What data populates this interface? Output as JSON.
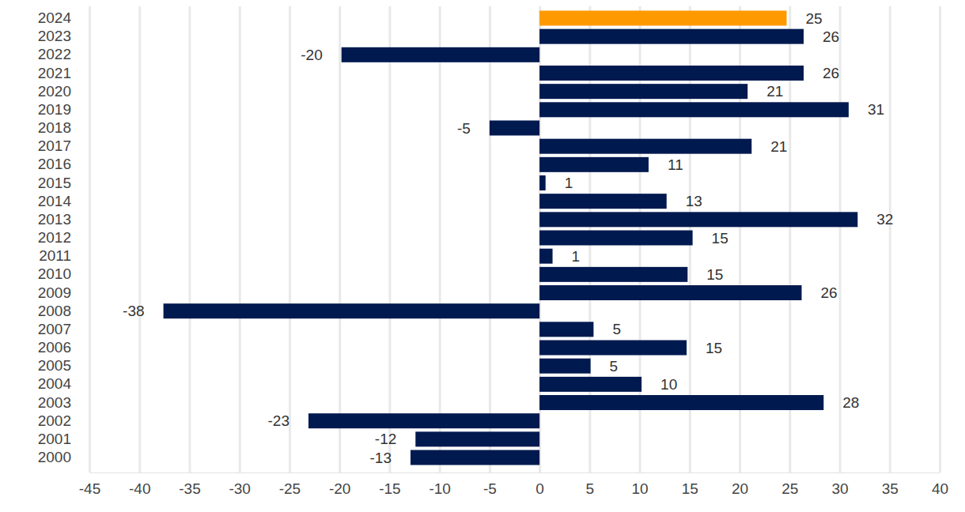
{
  "chart_data": {
    "type": "bar",
    "orientation": "horizontal",
    "categories": [
      "2024",
      "2023",
      "2022",
      "2021",
      "2020",
      "2019",
      "2018",
      "2017",
      "2016",
      "2015",
      "2014",
      "2013",
      "2012",
      "2011",
      "2010",
      "2009",
      "2008",
      "2007",
      "2006",
      "2005",
      "2004",
      "2003",
      "2002",
      "2001",
      "2000"
    ],
    "values": [
      24.7,
      26.4,
      -19.8,
      26.4,
      20.8,
      30.9,
      -5.0,
      21.2,
      10.9,
      0.6,
      12.7,
      31.8,
      15.3,
      1.3,
      14.8,
      26.2,
      -37.6,
      5.4,
      14.7,
      5.1,
      10.2,
      28.4,
      -23.1,
      -12.4,
      -12.9
    ],
    "value_labels": [
      "25",
      "26",
      "-20",
      "26",
      "21",
      "31",
      "-5",
      "21",
      "11",
      "1",
      "13",
      "32",
      "15",
      "1",
      "15",
      "26",
      "-38",
      "5",
      "15",
      "5",
      "10",
      "28",
      "-23",
      "-12",
      "-13"
    ],
    "colors": [
      "#ff9900",
      "#00194f",
      "#00194f",
      "#00194f",
      "#00194f",
      "#00194f",
      "#00194f",
      "#00194f",
      "#00194f",
      "#00194f",
      "#00194f",
      "#00194f",
      "#00194f",
      "#00194f",
      "#00194f",
      "#00194f",
      "#00194f",
      "#00194f",
      "#00194f",
      "#00194f",
      "#00194f",
      "#00194f",
      "#00194f",
      "#00194f",
      "#00194f"
    ],
    "xlim": [
      -45,
      40
    ],
    "xticks": [
      -45,
      -40,
      -35,
      -30,
      -25,
      -20,
      -15,
      -10,
      -5,
      0,
      5,
      10,
      15,
      20,
      25,
      30,
      35,
      40
    ],
    "grid": true,
    "data_labels": true
  }
}
